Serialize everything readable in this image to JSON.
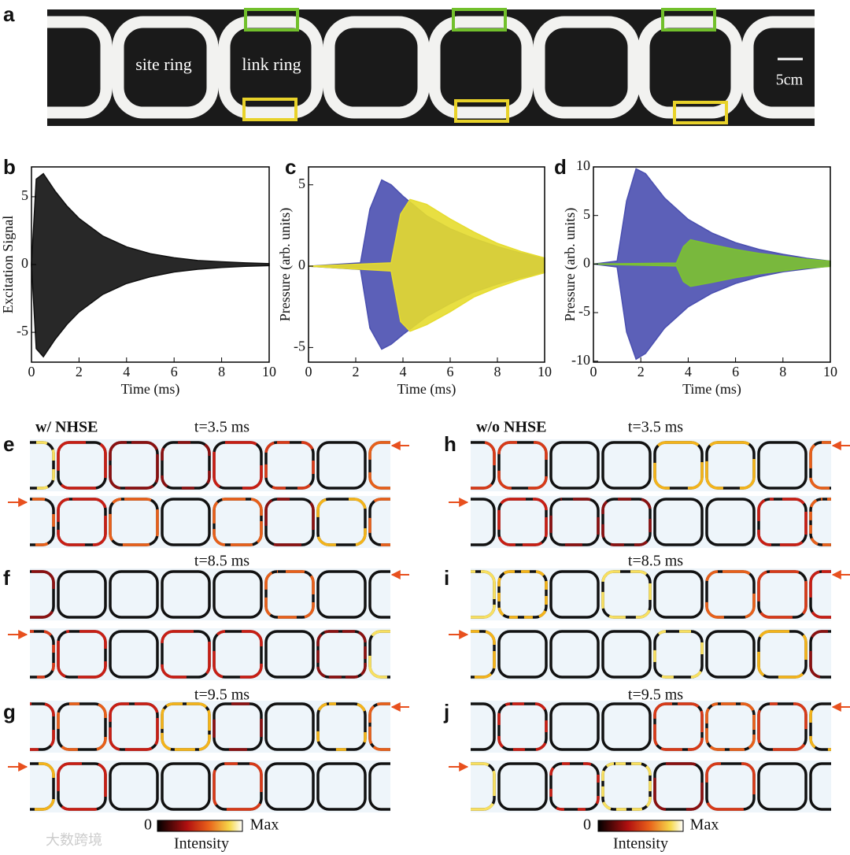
{
  "panel_labels": [
    "a",
    "b",
    "c",
    "d",
    "e",
    "f",
    "g",
    "h",
    "i",
    "j"
  ],
  "photo": {
    "site_label": "site ring",
    "link_label": "link ring",
    "scale_label": "5cm"
  },
  "chart_data": [
    {
      "type": "area",
      "xlabel": "Time (ms)",
      "ylabel": "Excitation Signal",
      "xlim": [
        0,
        10
      ],
      "xticks": [
        0,
        2,
        4,
        6,
        8,
        10
      ],
      "ylim": [
        -7.2,
        7.2
      ],
      "yticks": [
        -5,
        0,
        5
      ],
      "series": [
        {
          "color": "#111111",
          "x": [
            0,
            0.2,
            0.5,
            1,
            1.5,
            2,
            3,
            4,
            5,
            6,
            7,
            8,
            9,
            10
          ],
          "upper": [
            0,
            6.3,
            6.7,
            5.4,
            4.3,
            3.4,
            2.1,
            1.3,
            0.8,
            0.5,
            0.3,
            0.2,
            0.12,
            0.07
          ],
          "lower": [
            0,
            -6.2,
            -6.8,
            -5.5,
            -4.4,
            -3.5,
            -2.2,
            -1.4,
            -0.9,
            -0.55,
            -0.35,
            -0.22,
            -0.13,
            -0.08
          ]
        }
      ]
    },
    {
      "type": "area",
      "xlabel": "Time (ms)",
      "ylabel": "Pressure (arb. units)",
      "xlim": [
        0,
        10
      ],
      "xticks": [
        0,
        2,
        4,
        6,
        8,
        10
      ],
      "ylim": [
        -5.9,
        6.1
      ],
      "yticks": [
        -5,
        0,
        5
      ],
      "series": [
        {
          "color": "#4a4fb0",
          "x": [
            0,
            2.2,
            2.6,
            3.1,
            3.5,
            4,
            5,
            6,
            7,
            8,
            9,
            10
          ],
          "upper": [
            0,
            0.2,
            3.5,
            5.3,
            5.0,
            4.3,
            3.1,
            2.3,
            1.7,
            1.2,
            0.8,
            0.5
          ],
          "lower": [
            0,
            -0.2,
            -3.8,
            -5.1,
            -4.8,
            -4.2,
            -3.1,
            -2.3,
            -1.6,
            -1.1,
            -0.7,
            -0.4
          ]
        },
        {
          "color": "#e6dc2e",
          "x": [
            0,
            3.5,
            3.9,
            4.3,
            5,
            6,
            7,
            8,
            9,
            10
          ],
          "upper": [
            0,
            0.2,
            3.2,
            4.1,
            3.8,
            2.9,
            2.1,
            1.4,
            0.9,
            0.5
          ],
          "lower": [
            0,
            -0.3,
            -3.4,
            -4.0,
            -3.6,
            -2.8,
            -1.9,
            -1.3,
            -0.8,
            -0.4
          ]
        }
      ]
    },
    {
      "type": "area",
      "xlabel": "Time (ms)",
      "ylabel": "Pressure (arb. units)",
      "xlim": [
        0,
        10
      ],
      "xticks": [
        0,
        2,
        4,
        6,
        8,
        10
      ],
      "ylim": [
        -10.1,
        10.0
      ],
      "yticks": [
        -10,
        -5,
        0,
        5,
        10
      ],
      "series": [
        {
          "color": "#4a4fb0",
          "x": [
            0,
            1,
            1.4,
            1.8,
            2.2,
            3,
            4,
            5,
            6,
            7,
            8,
            9,
            10
          ],
          "upper": [
            0,
            0.3,
            6.5,
            9.8,
            9.3,
            6.8,
            4.6,
            3.2,
            2.2,
            1.5,
            1.0,
            0.6,
            0.3
          ],
          "lower": [
            0,
            -0.3,
            -7.0,
            -9.8,
            -9.2,
            -6.6,
            -4.4,
            -3.0,
            -2.0,
            -1.3,
            -0.8,
            -0.5,
            -0.2
          ]
        },
        {
          "color": "#7cc230",
          "x": [
            0,
            3.5,
            3.8,
            4.1,
            5,
            6,
            7,
            8,
            9,
            10
          ],
          "upper": [
            0,
            0.1,
            1.8,
            2.5,
            2.0,
            1.5,
            1.1,
            0.8,
            0.5,
            0.3
          ],
          "lower": [
            0,
            -0.2,
            -1.8,
            -2.3,
            -1.9,
            -1.4,
            -1.0,
            -0.7,
            -0.4,
            -0.25
          ]
        }
      ]
    }
  ],
  "maps": {
    "left": {
      "title": "w/ NHSE",
      "times": [
        "t=3.5 ms",
        "t=8.5 ms",
        "t=9.5 ms"
      ],
      "colorbar": {
        "min": "0",
        "max": "Max",
        "label": "Intensity"
      }
    },
    "right": {
      "title": "w/o NHSE",
      "times": [
        "t=3.5 ms",
        "t=8.5 ms",
        "t=9.5 ms"
      ],
      "colorbar": {
        "min": "0",
        "max": "Max",
        "label": "Intensity"
      }
    }
  },
  "watermark": "大数跨境"
}
